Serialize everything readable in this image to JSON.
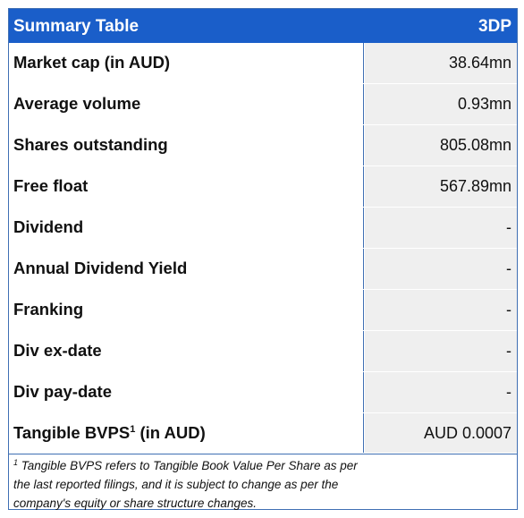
{
  "header": {
    "title": "Summary Table",
    "ticker": "3DP"
  },
  "rows": [
    {
      "label": "Market cap (in AUD)",
      "value": "38.64mn"
    },
    {
      "label": "Average volume",
      "value": "0.93mn"
    },
    {
      "label": "Shares outstanding",
      "value": "805.08mn"
    },
    {
      "label": "Free float",
      "value": "567.89mn"
    },
    {
      "label": "Dividend",
      "value": "-"
    },
    {
      "label": "Annual Dividend Yield",
      "value": "-"
    },
    {
      "label": "Franking",
      "value": "-"
    },
    {
      "label": "Div ex-date",
      "value": "-"
    },
    {
      "label": "Div pay-date",
      "value": "-"
    }
  ],
  "last_row": {
    "label_main": "Tangible BVPS",
    "label_sup": "1",
    "label_tail": " (in AUD)",
    "value": "AUD 0.0007"
  },
  "footnote": {
    "marker": "1",
    "text": " Tangible BVPS refers to Tangible Book Value Per Share as per the last reported filings, and it is subject to change as per the company's equity or share structure changes."
  },
  "colors": {
    "header_bg": "#1a5ec9",
    "border": "#3f6fb3",
    "value_bg": "#efefef"
  }
}
